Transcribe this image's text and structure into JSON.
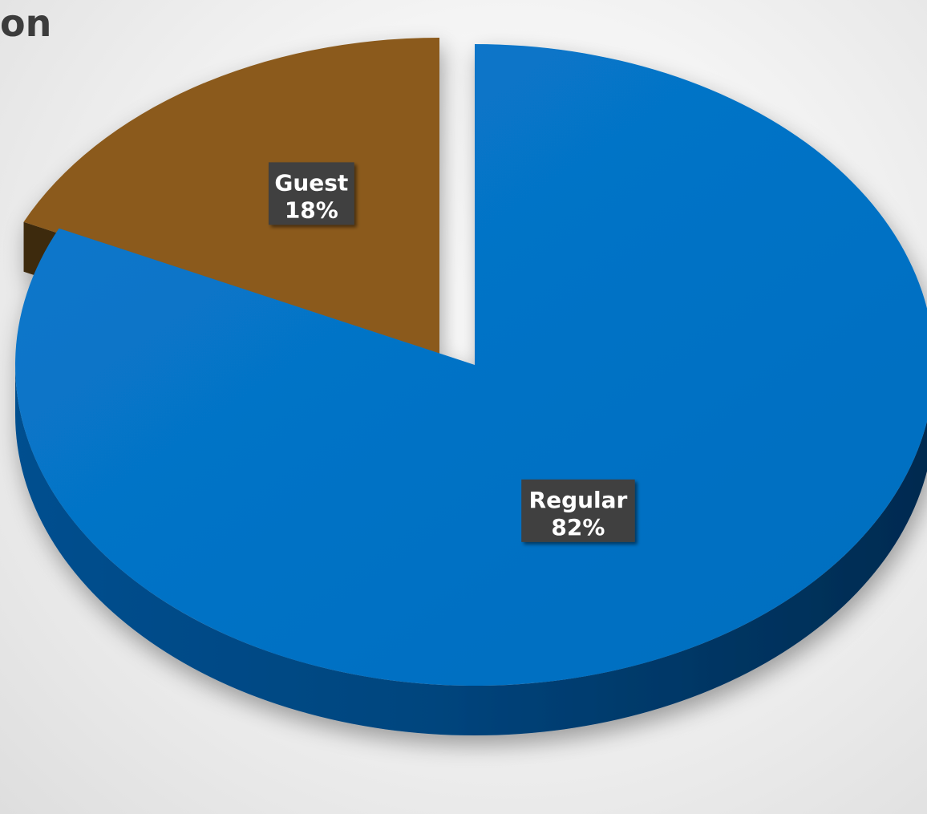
{
  "title_fragment": "on",
  "chart_data": {
    "type": "pie",
    "title": "",
    "legend": "none",
    "slices": [
      {
        "label": "Guest",
        "value": 18,
        "value_label": "18%",
        "color": "#8b5a1c",
        "side_color": "#3e2a0c",
        "exploded": true
      },
      {
        "label": "Regular",
        "value": 82,
        "value_label": "82%",
        "color": "#0270c5",
        "side_color": "#003f75",
        "exploded": false
      }
    ]
  },
  "label_style": {
    "box_color": "#404040",
    "text_color": "#ffffff"
  }
}
